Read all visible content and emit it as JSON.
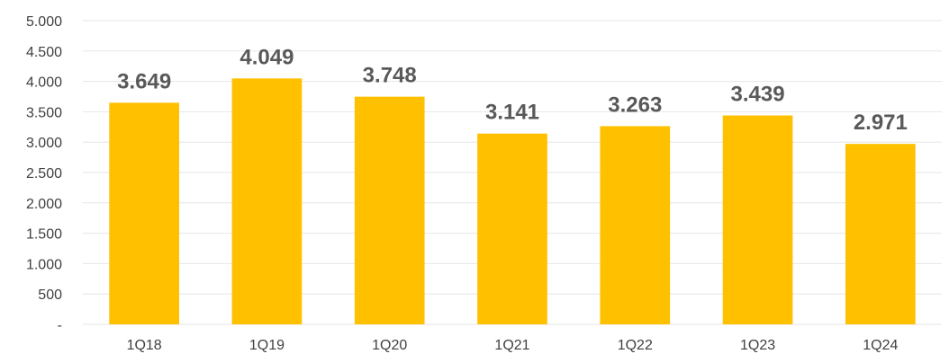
{
  "chart_data": {
    "type": "bar",
    "title": "",
    "xlabel": "",
    "ylabel": "",
    "categories": [
      "1Q18",
      "1Q19",
      "1Q20",
      "1Q21",
      "1Q22",
      "1Q23",
      "1Q24"
    ],
    "values": [
      3649,
      4049,
      3748,
      3141,
      3263,
      3439,
      2971
    ],
    "data_labels": [
      "3.649",
      "4.049",
      "3.748",
      "3.141",
      "3.263",
      "3.439",
      "2.971"
    ],
    "ylim": [
      0,
      5000
    ],
    "yticks": [
      0,
      500,
      1000,
      1500,
      2000,
      2500,
      3000,
      3500,
      4000,
      4500,
      5000
    ],
    "ytick_labels": [
      "-",
      "500",
      "1.000",
      "1.500",
      "2.000",
      "2.500",
      "3.000",
      "3.500",
      "4.000",
      "4.500",
      "5.000"
    ],
    "grid": true,
    "legend": "none",
    "bar_color": "#FFC000",
    "label_color": "#595959"
  }
}
